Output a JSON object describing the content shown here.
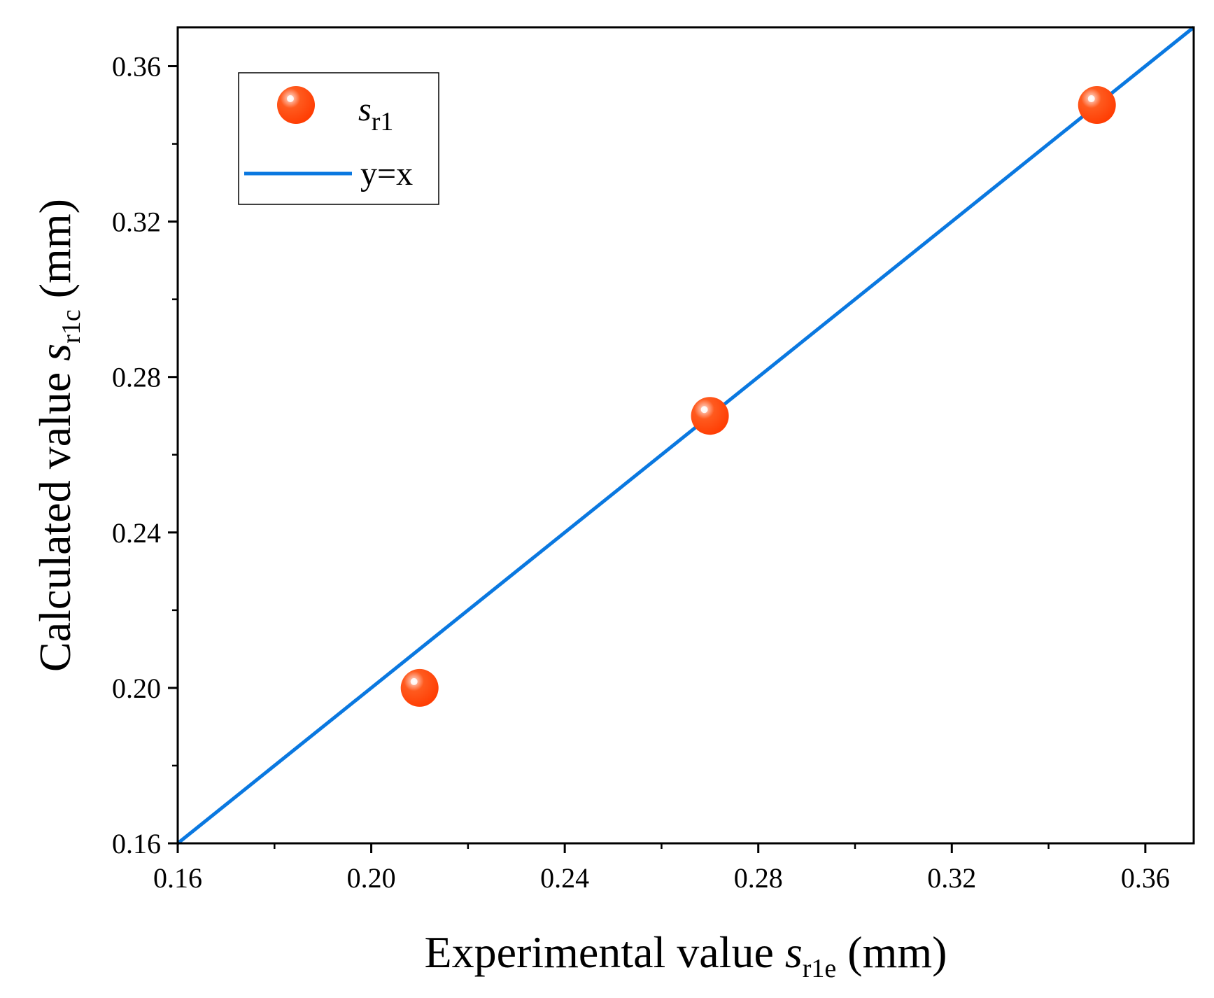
{
  "chart_data": {
    "type": "scatter",
    "title": "",
    "xlabel": {
      "prefix": "Experimental value ",
      "symbol": "s",
      "subscript": "r1e",
      "suffix": " (mm)"
    },
    "ylabel": {
      "prefix": "Calculated value ",
      "symbol": "s",
      "subscript": "r1c",
      "suffix": " (mm)"
    },
    "xlim": [
      0.16,
      0.37
    ],
    "ylim": [
      0.16,
      0.37
    ],
    "xticks": [
      "0.16",
      "0.20",
      "0.24",
      "0.28",
      "0.32",
      "0.36"
    ],
    "yticks": [
      "0.16",
      "0.20",
      "0.24",
      "0.28",
      "0.32",
      "0.36"
    ],
    "xtick_values": [
      0.16,
      0.2,
      0.24,
      0.28,
      0.32,
      0.36
    ],
    "ytick_values": [
      0.16,
      0.2,
      0.24,
      0.28,
      0.32,
      0.36
    ],
    "minor_step": 0.02,
    "grid": false,
    "legend": {
      "position": "top-left",
      "entries": [
        {
          "symbol": "s",
          "subscript": "r1"
        },
        {
          "label": "y=x"
        }
      ]
    },
    "series": [
      {
        "name": "s_r1",
        "kind": "scatter",
        "color": "#ff4a0a",
        "points": [
          {
            "x": 0.21,
            "y": 0.2
          },
          {
            "x": 0.27,
            "y": 0.27
          },
          {
            "x": 0.35,
            "y": 0.35
          }
        ]
      },
      {
        "name": "y=x",
        "kind": "line",
        "color": "#0a78e0",
        "points": [
          {
            "x": 0.16,
            "y": 0.16
          },
          {
            "x": 0.37,
            "y": 0.37
          }
        ]
      }
    ]
  }
}
